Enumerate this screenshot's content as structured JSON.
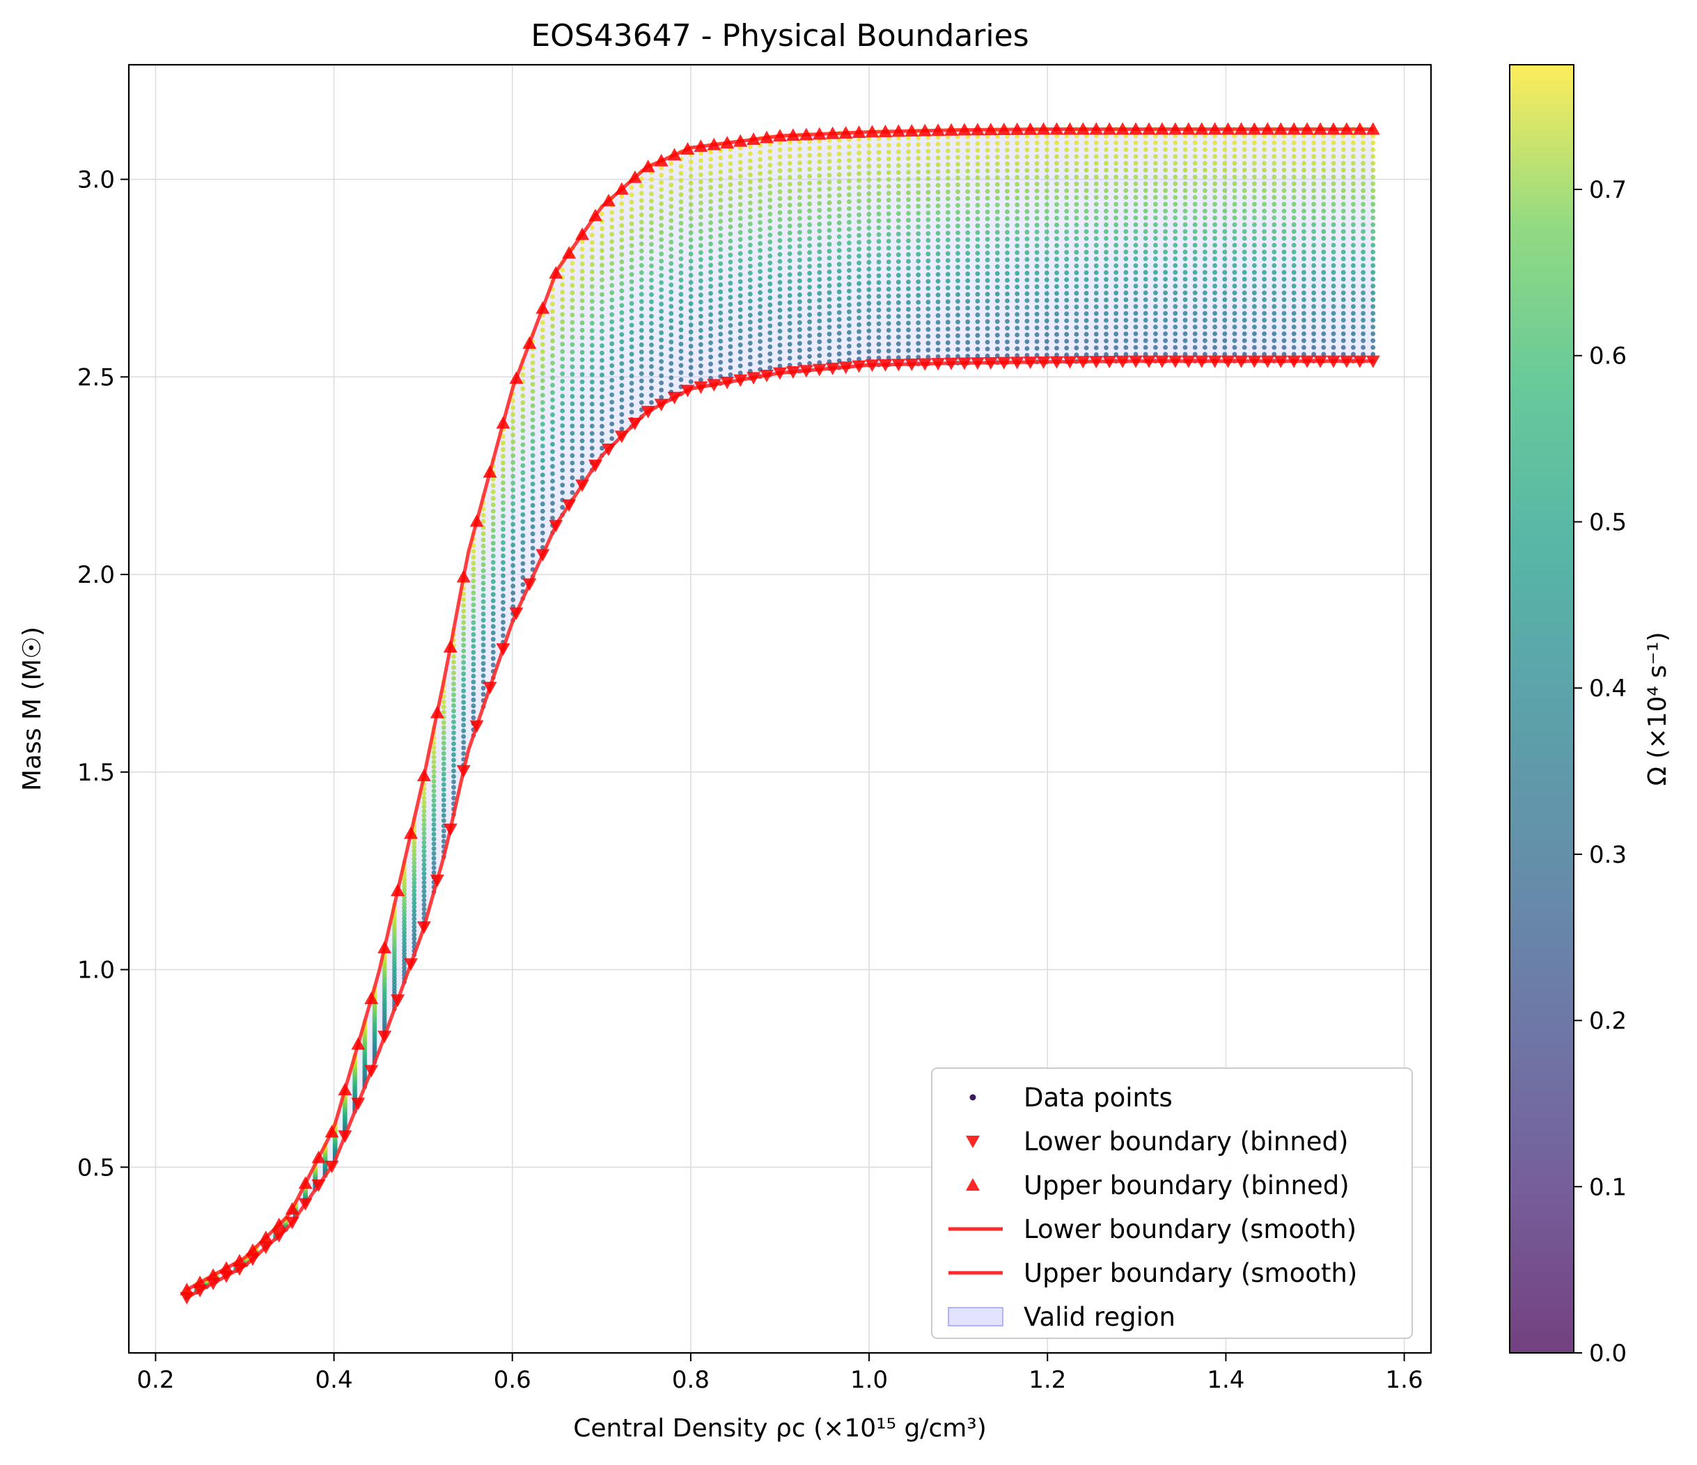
{
  "chart_data": {
    "type": "scatter",
    "title": "EOS43647 - Physical Boundaries",
    "xlabel": "Central Density ρc (×10¹⁵ g/cm³)",
    "ylabel": "Mass M (M☉)",
    "colorbar_label": "Ω (×10⁴ s⁻¹)",
    "xlim": [
      0.17,
      1.63
    ],
    "ylim": [
      0.03,
      3.29
    ],
    "clim": [
      0.0,
      0.775
    ],
    "xticks": [
      0.2,
      0.4,
      0.6,
      0.8,
      1.0,
      1.2,
      1.4,
      1.6
    ],
    "xtick_labels": [
      "0.2",
      "0.4",
      "0.6",
      "0.8",
      "1.0",
      "1.2",
      "1.4",
      "1.6"
    ],
    "yticks": [
      0.5,
      1.0,
      1.5,
      2.0,
      2.5,
      3.0
    ],
    "ytick_labels": [
      "0.5",
      "1.0",
      "1.5",
      "2.0",
      "2.5",
      "3.0"
    ],
    "cticks": [
      0.0,
      0.1,
      0.2,
      0.3,
      0.4,
      0.5,
      0.6,
      0.7
    ],
    "ctick_labels": [
      "0.0",
      "0.1",
      "0.2",
      "0.3",
      "0.4",
      "0.5",
      "0.6",
      "0.7"
    ],
    "grid": true,
    "colormap": "viridis",
    "legend_position": "lower right",
    "legend": [
      {
        "label": "Data points",
        "marker": "dot",
        "color": "#3b1c5a"
      },
      {
        "label": "Lower boundary (binned)",
        "marker": "triangle-down",
        "color": "#ff0000"
      },
      {
        "label": "Upper boundary (binned)",
        "marker": "triangle-up",
        "color": "#ff0000"
      },
      {
        "label": "Lower boundary (smooth)",
        "marker": "line",
        "color": "#ff2a2a"
      },
      {
        "label": "Upper boundary (smooth)",
        "marker": "line",
        "color": "#ff2a2a"
      },
      {
        "label": "Valid region",
        "marker": "patch",
        "color": "#c8c8ff"
      }
    ],
    "series": [
      {
        "name": "Lower boundary (binned)",
        "x": [
          0.235,
          0.3,
          0.35,
          0.4,
          0.45,
          0.5,
          0.525,
          0.55,
          0.6,
          0.65,
          0.7,
          0.75,
          0.8,
          0.9,
          1.0,
          1.1,
          1.2,
          1.3,
          1.4,
          1.5,
          1.565
        ],
        "y": [
          0.17,
          0.25,
          0.35,
          0.51,
          0.79,
          1.1,
          1.3,
          1.55,
          1.88,
          2.13,
          2.3,
          2.41,
          2.47,
          2.51,
          2.53,
          2.535,
          2.538,
          2.54,
          2.54,
          2.54,
          2.54
        ]
      },
      {
        "name": "Upper boundary (binned)",
        "x": [
          0.235,
          0.3,
          0.35,
          0.4,
          0.45,
          0.5,
          0.525,
          0.55,
          0.6,
          0.65,
          0.7,
          0.75,
          0.8,
          0.9,
          1.0,
          1.1,
          1.2,
          1.3,
          1.4,
          1.5,
          1.565
        ],
        "y": [
          0.19,
          0.27,
          0.38,
          0.6,
          0.99,
          1.48,
          1.75,
          2.05,
          2.47,
          2.77,
          2.93,
          3.03,
          3.08,
          3.11,
          3.12,
          3.125,
          3.127,
          3.127,
          3.127,
          3.127,
          3.127
        ]
      }
    ]
  }
}
